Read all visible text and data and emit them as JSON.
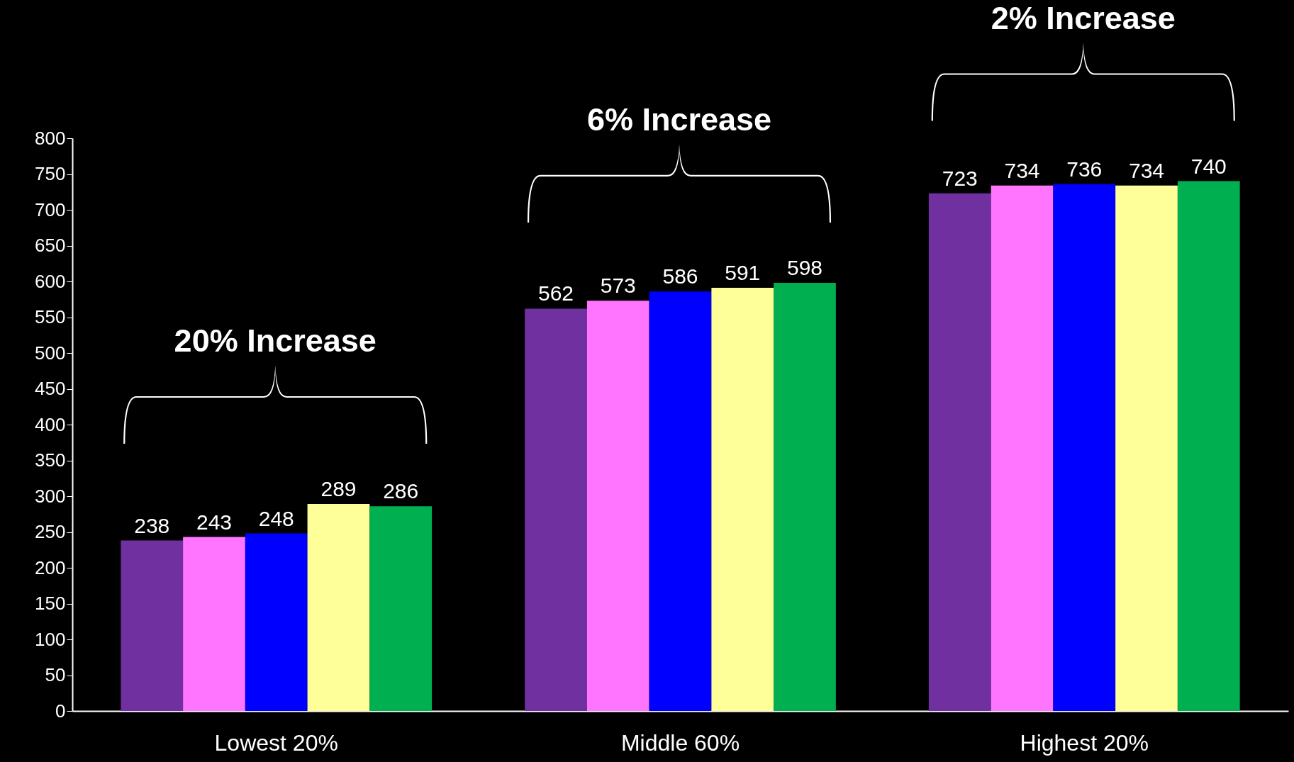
{
  "chart_data": {
    "type": "bar",
    "categories": [
      "Lowest 20%",
      "Middle 60%",
      "Highest 20%"
    ],
    "series": [
      {
        "color": "#7030a0",
        "values": [
          238,
          562,
          723
        ]
      },
      {
        "color": "#ff75ff",
        "values": [
          243,
          573,
          734
        ]
      },
      {
        "color": "#0000ff",
        "values": [
          248,
          586,
          736
        ]
      },
      {
        "color": "#ffff99",
        "values": [
          289,
          591,
          734
        ]
      },
      {
        "color": "#00b050",
        "values": [
          286,
          598,
          740
        ]
      }
    ],
    "ylim": [
      0,
      800
    ],
    "yticks": [
      0,
      50,
      100,
      150,
      200,
      250,
      300,
      350,
      400,
      450,
      500,
      550,
      600,
      650,
      700,
      750,
      800
    ],
    "data_labels": true,
    "grid": false,
    "legend": false,
    "annotations": [
      "20% Increase",
      "6% Increase",
      "2% Increase"
    ]
  }
}
